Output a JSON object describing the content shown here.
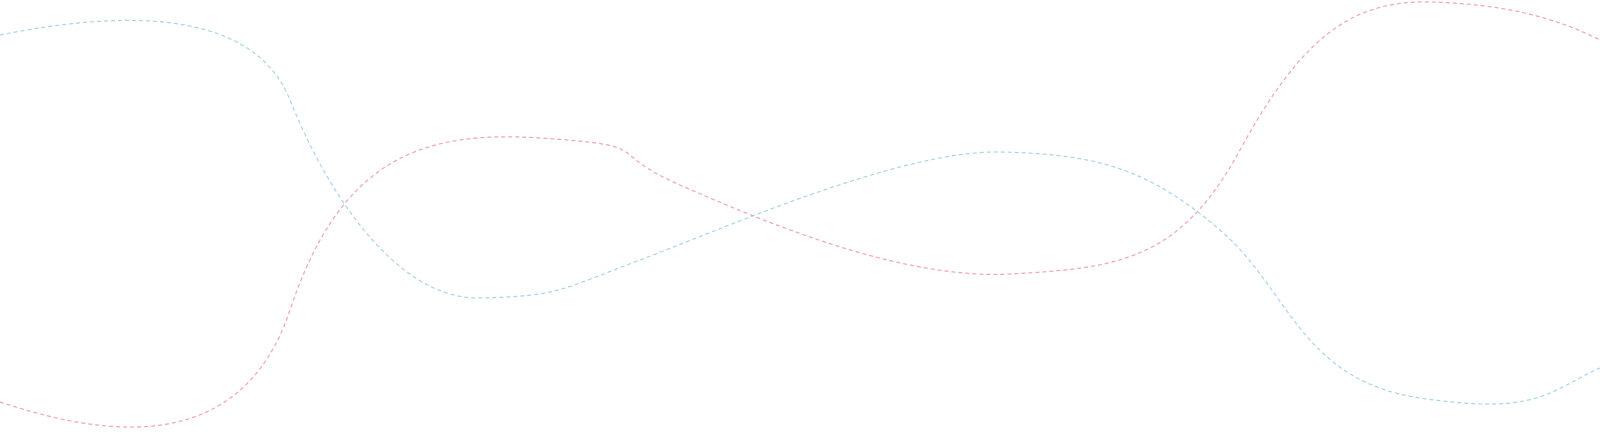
{
  "decoration": {
    "curves": [
      {
        "name": "blue-wave",
        "color": "#a9d4ea",
        "style": "dashed"
      },
      {
        "name": "pink-wave",
        "color": "#f0a3bb",
        "style": "dashed"
      }
    ]
  }
}
